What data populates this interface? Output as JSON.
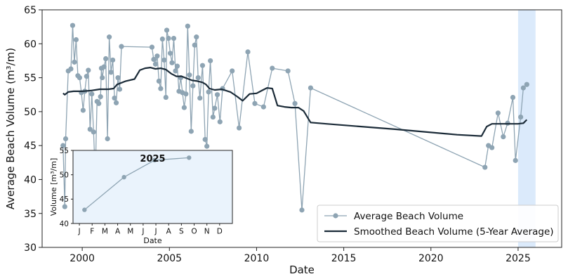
{
  "chart_data": [
    {
      "type": "line",
      "title": "",
      "xlabel": "Date",
      "ylabel": "Average Beach Volume (m³/m)",
      "xlim": [
        1997.7,
        2027.5
      ],
      "ylim": [
        30,
        65
      ],
      "x_ticks": [
        2000,
        2005,
        2010,
        2015,
        2020,
        2025
      ],
      "x_tick_labels": [
        "2000",
        "2005",
        "2010",
        "2015",
        "2020",
        "2025"
      ],
      "y_ticks": [
        30,
        35,
        40,
        45,
        50,
        55,
        60,
        65
      ],
      "y_tick_labels": [
        "30",
        "35",
        "40",
        "45",
        "50",
        "55",
        "60",
        "65"
      ],
      "grid": false,
      "legend_position": "lower-right",
      "highlight_span": {
        "x_from": 2025.0,
        "x_to": 2026.0,
        "color": "#dbeafb"
      },
      "series": [
        {
          "name": "Average Beach Volume",
          "color": "#8ea4b3",
          "marker": "circle",
          "points": [
            [
              1998.9,
              45.0
            ],
            [
              1999.0,
              36.0
            ],
            [
              1999.05,
              46.0
            ],
            [
              1999.2,
              56.0
            ],
            [
              1999.35,
              56.3
            ],
            [
              1999.45,
              62.7
            ],
            [
              1999.55,
              57.3
            ],
            [
              1999.65,
              60.6
            ],
            [
              1999.75,
              55.3
            ],
            [
              1999.85,
              55.0
            ],
            [
              1999.95,
              52.8
            ],
            [
              2000.05,
              50.2
            ],
            [
              2000.15,
              53.0
            ],
            [
              2000.25,
              55.2
            ],
            [
              2000.35,
              56.1
            ],
            [
              2000.45,
              47.4
            ],
            [
              2000.55,
              52.6
            ],
            [
              2000.65,
              47.0
            ],
            [
              2000.75,
              40.5
            ],
            [
              2000.85,
              51.5
            ],
            [
              2000.95,
              51.2
            ],
            [
              2001.05,
              52.2
            ],
            [
              2001.1,
              56.4
            ],
            [
              2001.15,
              55.0
            ],
            [
              2001.25,
              56.6
            ],
            [
              2001.35,
              57.8
            ],
            [
              2001.45,
              46.0
            ],
            [
              2001.55,
              61.0
            ],
            [
              2001.65,
              55.8
            ],
            [
              2001.75,
              57.6
            ],
            [
              2001.85,
              52.0
            ],
            [
              2001.95,
              51.3
            ],
            [
              2002.05,
              55.0
            ],
            [
              2002.15,
              53.3
            ],
            [
              2002.25,
              59.6
            ],
            [
              2004.0,
              59.5
            ],
            [
              2004.1,
              57.7
            ],
            [
              2004.2,
              57.0
            ],
            [
              2004.3,
              58.2
            ],
            [
              2004.4,
              54.5
            ],
            [
              2004.5,
              53.4
            ],
            [
              2004.6,
              60.7
            ],
            [
              2004.7,
              57.6
            ],
            [
              2004.8,
              52.1
            ],
            [
              2004.85,
              62.0
            ],
            [
              2004.95,
              60.8
            ],
            [
              2005.05,
              58.6
            ],
            [
              2005.15,
              57.2
            ],
            [
              2005.25,
              60.8
            ],
            [
              2005.35,
              56.0
            ],
            [
              2005.45,
              56.7
            ],
            [
              2005.55,
              53.0
            ],
            [
              2005.65,
              55.0
            ],
            [
              2005.75,
              52.8
            ],
            [
              2005.85,
              50.6
            ],
            [
              2005.95,
              52.6
            ],
            [
              2006.05,
              62.6
            ],
            [
              2006.15,
              55.4
            ],
            [
              2006.25,
              47.1
            ],
            [
              2006.35,
              53.8
            ],
            [
              2006.45,
              59.8
            ],
            [
              2006.55,
              61.0
            ],
            [
              2006.65,
              55.0
            ],
            [
              2006.75,
              52.0
            ],
            [
              2006.9,
              56.8
            ],
            [
              2007.05,
              45.9
            ],
            [
              2007.15,
              44.9
            ],
            [
              2007.25,
              52.9
            ],
            [
              2007.35,
              57.5
            ],
            [
              2007.5,
              49.2
            ],
            [
              2007.6,
              50.5
            ],
            [
              2007.75,
              52.5
            ],
            [
              2007.9,
              48.5
            ],
            [
              2008.05,
              53.4
            ],
            [
              2008.6,
              56.0
            ],
            [
              2009.0,
              47.6
            ],
            [
              2009.5,
              58.8
            ],
            [
              2009.9,
              51.2
            ],
            [
              2010.4,
              50.7
            ],
            [
              2010.9,
              56.4
            ],
            [
              2011.8,
              56.0
            ],
            [
              2012.2,
              51.2
            ],
            [
              2012.6,
              35.5
            ],
            [
              2013.1,
              53.5
            ],
            [
              2023.1,
              41.8
            ],
            [
              2023.3,
              45.0
            ],
            [
              2023.5,
              44.7
            ],
            [
              2023.85,
              49.8
            ],
            [
              2024.15,
              46.3
            ],
            [
              2024.4,
              48.3
            ],
            [
              2024.7,
              52.1
            ],
            [
              2024.85,
              42.8
            ],
            [
              2025.15,
              49.2
            ],
            [
              2025.3,
              53.5
            ],
            [
              2025.5,
              54.0
            ]
          ]
        },
        {
          "name": "Smoothed Beach Volume (5-Year Average)",
          "color": "#1b2b38",
          "marker": "none",
          "points": [
            [
              1998.9,
              52.7
            ],
            [
              1999.0,
              52.5
            ],
            [
              1999.2,
              52.9
            ],
            [
              1999.5,
              53.0
            ],
            [
              2000.0,
              53.0
            ],
            [
              2000.5,
              53.1
            ],
            [
              2001.0,
              53.3
            ],
            [
              2001.5,
              53.3
            ],
            [
              2001.8,
              53.4
            ],
            [
              2002.0,
              54.0
            ],
            [
              2002.5,
              54.5
            ],
            [
              2003.0,
              54.8
            ],
            [
              2003.3,
              56.1
            ],
            [
              2003.6,
              56.4
            ],
            [
              2003.9,
              56.5
            ],
            [
              2004.2,
              56.3
            ],
            [
              2004.5,
              56.4
            ],
            [
              2004.8,
              56.2
            ],
            [
              2005.1,
              55.6
            ],
            [
              2005.4,
              55.2
            ],
            [
              2005.7,
              55.2
            ],
            [
              2006.0,
              54.9
            ],
            [
              2006.3,
              54.6
            ],
            [
              2006.6,
              54.5
            ],
            [
              2006.9,
              54.3
            ],
            [
              2007.1,
              54.0
            ],
            [
              2007.3,
              53.4
            ],
            [
              2007.6,
              53.2
            ],
            [
              2008.0,
              53.3
            ],
            [
              2008.5,
              52.9
            ],
            [
              2008.9,
              52.2
            ],
            [
              2009.2,
              51.6
            ],
            [
              2009.6,
              52.6
            ],
            [
              2010.0,
              52.7
            ],
            [
              2010.3,
              53.1
            ],
            [
              2010.6,
              53.5
            ],
            [
              2010.9,
              53.4
            ],
            [
              2011.2,
              50.9
            ],
            [
              2011.6,
              50.7
            ],
            [
              2012.0,
              50.6
            ],
            [
              2012.4,
              50.6
            ],
            [
              2012.7,
              50.1
            ],
            [
              2013.1,
              48.4
            ],
            [
              2014.0,
              48.2
            ],
            [
              2018.0,
              47.4
            ],
            [
              2021.5,
              46.6
            ],
            [
              2022.9,
              46.4
            ],
            [
              2023.2,
              47.8
            ],
            [
              2023.5,
              48.2
            ],
            [
              2024.0,
              48.2
            ],
            [
              2024.5,
              48.2
            ],
            [
              2025.0,
              48.2
            ],
            [
              2025.3,
              48.3
            ],
            [
              2025.5,
              48.8
            ]
          ]
        }
      ]
    },
    {
      "type": "line",
      "title": "2025",
      "xlabel": "Date",
      "ylabel": "Volume [m³/m]",
      "xlim": [
        -0.5,
        12.0
      ],
      "ylim": [
        40,
        55
      ],
      "x_ticks": [
        0,
        1,
        2,
        3,
        4,
        5,
        6,
        7,
        8,
        9,
        10,
        11
      ],
      "x_tick_labels": [
        "J",
        "F",
        "M",
        "A",
        "M",
        "J",
        "J",
        "A",
        "S",
        "O",
        "N",
        "D"
      ],
      "y_ticks": [
        40,
        45,
        50,
        55
      ],
      "y_tick_labels": [
        "40",
        "45",
        "50",
        "55"
      ],
      "grid": false,
      "background": "#eaf3fc",
      "series": [
        {
          "color": "#8ea4b3",
          "marker": "circle",
          "points": [
            [
              0.4,
              42.8
            ],
            [
              3.5,
              49.5
            ],
            [
              5.9,
              53.0
            ],
            [
              8.6,
              53.5
            ]
          ]
        }
      ]
    }
  ],
  "legend": {
    "items": [
      {
        "label": "Average Beach Volume",
        "color": "#8ea4b3",
        "marker": "circle"
      },
      {
        "label": "Smoothed Beach Volume (5-Year Average)",
        "color": "#1b2b38",
        "marker": "none"
      }
    ]
  }
}
